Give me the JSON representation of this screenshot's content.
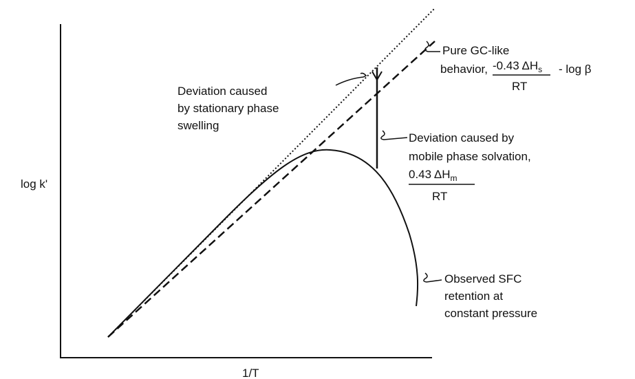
{
  "axes": {
    "y_label": "log k'",
    "x_label": "1/T"
  },
  "annotations": {
    "gc_like": {
      "lines": [
        "Pure GC-like",
        "behavior,"
      ],
      "numerator": {
        "coefficient": "-0.43 ΔH",
        "subscript": "s"
      },
      "denominator": "RT",
      "suffix": "- log β"
    },
    "swelling": {
      "lines": [
        "Deviation caused",
        "by stationary phase",
        "swelling"
      ]
    },
    "solvation": {
      "lines": [
        "Deviation caused by",
        "mobile phase solvation,"
      ],
      "numerator": {
        "coefficient": "0.43 ΔH",
        "subscript": "m"
      },
      "denominator": "RT"
    },
    "observed": {
      "lines": [
        "Observed SFC",
        "retention at",
        "constant pressure"
      ]
    }
  }
}
